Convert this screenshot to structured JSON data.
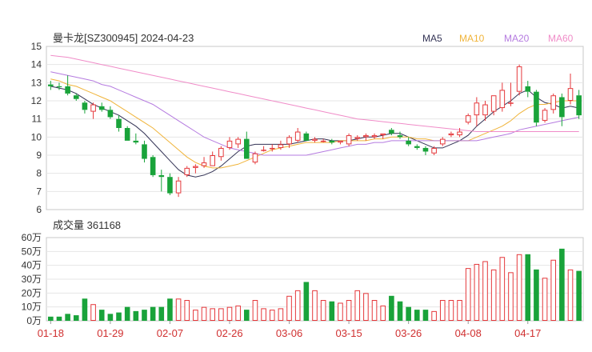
{
  "chart_data": [
    {
      "type": "candlestick",
      "title": "曼卡龙[SZ300945] 2024-04-23",
      "ylim": [
        6,
        15
      ],
      "y_ticks": [
        "6",
        "7",
        "8",
        "9",
        "10",
        "11",
        "12",
        "13",
        "14",
        "15"
      ],
      "legend": [
        {
          "name": "MA5",
          "color": "#333355"
        },
        {
          "name": "MA10",
          "color": "#f0b43a"
        },
        {
          "name": "MA20",
          "color": "#b57be0"
        },
        {
          "name": "MA60",
          "color": "#f08cc8"
        }
      ],
      "up_color": "#e5383b",
      "down_color": "#19a33a",
      "ohlc": [
        [
          12.9,
          13.1,
          12.6,
          12.8
        ],
        [
          12.8,
          13.0,
          12.6,
          12.75
        ],
        [
          12.8,
          13.4,
          12.3,
          12.4
        ],
        [
          12.3,
          12.4,
          12.0,
          12.1
        ],
        [
          11.9,
          12.0,
          11.3,
          11.5
        ],
        [
          11.4,
          11.9,
          11.0,
          11.8
        ],
        [
          11.7,
          11.9,
          11.4,
          11.5
        ],
        [
          11.5,
          11.7,
          11.0,
          11.1
        ],
        [
          11.0,
          11.2,
          10.3,
          10.5
        ],
        [
          10.5,
          10.6,
          9.8,
          9.8
        ],
        [
          9.8,
          10.2,
          9.6,
          9.7
        ],
        [
          9.6,
          9.8,
          8.6,
          8.8
        ],
        [
          8.9,
          9.0,
          7.8,
          7.9
        ],
        [
          7.9,
          8.2,
          7.0,
          7.8
        ],
        [
          7.8,
          8.0,
          6.8,
          6.9
        ],
        [
          6.9,
          7.8,
          6.7,
          7.6
        ],
        [
          7.9,
          8.4,
          7.8,
          8.3
        ],
        [
          8.3,
          8.5,
          8.0,
          8.4
        ],
        [
          8.4,
          8.9,
          8.3,
          8.6
        ],
        [
          8.4,
          9.2,
          8.4,
          9.0
        ],
        [
          8.9,
          9.5,
          8.7,
          9.4
        ],
        [
          9.4,
          10.0,
          9.3,
          9.8
        ],
        [
          9.6,
          10.0,
          9.4,
          9.9
        ],
        [
          9.9,
          10.3,
          8.8,
          8.8
        ],
        [
          8.6,
          9.2,
          8.5,
          9.1
        ],
        [
          9.3,
          9.5,
          9.2,
          9.3
        ],
        [
          9.4,
          9.6,
          9.2,
          9.4
        ],
        [
          9.4,
          9.8,
          9.3,
          9.6
        ],
        [
          9.6,
          10.1,
          9.4,
          10.0
        ],
        [
          9.8,
          10.5,
          9.7,
          10.3
        ],
        [
          10.2,
          10.3,
          9.8,
          9.8
        ],
        [
          9.8,
          10.0,
          9.7,
          9.9
        ],
        [
          9.8,
          9.9,
          9.7,
          9.8
        ],
        [
          9.8,
          9.9,
          9.6,
          9.7
        ],
        [
          9.7,
          9.8,
          9.6,
          9.8
        ],
        [
          9.6,
          10.2,
          9.5,
          10.1
        ],
        [
          9.9,
          10.1,
          9.8,
          10.0
        ],
        [
          10.0,
          10.2,
          9.8,
          10.1
        ],
        [
          10.0,
          10.2,
          9.9,
          10.1
        ],
        [
          10.1,
          10.2,
          9.9,
          10.2
        ],
        [
          10.4,
          10.5,
          10.1,
          10.2
        ],
        [
          10.1,
          10.3,
          9.9,
          10.0
        ],
        [
          9.8,
          10.0,
          9.5,
          9.6
        ],
        [
          9.5,
          9.6,
          9.3,
          9.4
        ],
        [
          9.4,
          9.5,
          9.0,
          9.2
        ],
        [
          9.1,
          9.5,
          9.0,
          9.4
        ],
        [
          9.6,
          10.0,
          9.5,
          9.9
        ],
        [
          10.1,
          10.3,
          10.0,
          10.2
        ],
        [
          10.1,
          10.5,
          10.0,
          10.3
        ],
        [
          10.8,
          11.3,
          10.7,
          11.2
        ],
        [
          11.2,
          12.2,
          10.6,
          11.9
        ],
        [
          11.2,
          12.0,
          10.9,
          11.8
        ],
        [
          11.4,
          12.3,
          11.2,
          12.3
        ],
        [
          11.6,
          13.0,
          11.4,
          12.6
        ],
        [
          11.9,
          13.0,
          11.7,
          11.9
        ],
        [
          12.5,
          14.0,
          12.3,
          13.9
        ],
        [
          12.8,
          13.1,
          12.2,
          12.5
        ],
        [
          12.5,
          12.6,
          10.6,
          10.8
        ],
        [
          10.9,
          11.6,
          10.8,
          11.5
        ],
        [
          11.5,
          12.4,
          11.3,
          12.3
        ],
        [
          12.2,
          12.4,
          10.6,
          11.1
        ],
        [
          12.0,
          13.5,
          11.8,
          12.7
        ],
        [
          12.3,
          12.6,
          11.0,
          11.2
        ]
      ],
      "ma": {
        "MA5": [
          12.8,
          12.7,
          12.6,
          12.4,
          12.1,
          11.8,
          11.6,
          11.4,
          11.2,
          10.9,
          10.6,
          10.2,
          9.7,
          9.2,
          8.7,
          8.2,
          7.9,
          7.8,
          7.9,
          8.1,
          8.4,
          8.8,
          9.2,
          9.5,
          9.6,
          9.6,
          9.6,
          9.6,
          9.6,
          9.7,
          9.8,
          9.9,
          9.9,
          9.8,
          9.8,
          9.8,
          9.9,
          10.0,
          10.0,
          10.1,
          10.2,
          10.2,
          10.0,
          9.8,
          9.6,
          9.4,
          9.4,
          9.6,
          9.8,
          10.1,
          10.6,
          11.0,
          11.4,
          11.7,
          12.0,
          12.4,
          12.6,
          12.2,
          11.9,
          11.8,
          11.6,
          11.7,
          11.6
        ],
        "MA10": [
          13.2,
          13.1,
          12.9,
          12.8,
          12.6,
          12.4,
          12.2,
          12.0,
          11.7,
          11.4,
          11.1,
          10.8,
          10.5,
          10.1,
          9.7,
          9.3,
          8.9,
          8.6,
          8.4,
          8.3,
          8.3,
          8.4,
          8.5,
          8.7,
          8.9,
          9.1,
          9.3,
          9.4,
          9.5,
          9.6,
          9.7,
          9.7,
          9.7,
          9.7,
          9.8,
          9.8,
          9.8,
          9.8,
          9.9,
          9.9,
          10.0,
          10.0,
          10.0,
          9.9,
          9.9,
          9.8,
          9.8,
          9.8,
          9.8,
          9.8,
          10.0,
          10.2,
          10.4,
          10.6,
          10.9,
          11.3,
          11.6,
          11.8,
          11.8,
          11.9,
          12.0,
          12.0,
          12.0
        ],
        "MA20": [
          13.6,
          13.5,
          13.4,
          13.3,
          13.2,
          13.1,
          12.9,
          12.8,
          12.6,
          12.4,
          12.2,
          12.0,
          11.8,
          11.5,
          11.2,
          10.9,
          10.6,
          10.3,
          10.0,
          9.8,
          9.6,
          9.4,
          9.3,
          9.2,
          9.1,
          9.0,
          9.0,
          9.0,
          9.0,
          9.0,
          9.0,
          9.1,
          9.2,
          9.3,
          9.4,
          9.5,
          9.6,
          9.6,
          9.7,
          9.7,
          9.8,
          9.8,
          9.8,
          9.8,
          9.8,
          9.8,
          9.8,
          9.8,
          9.8,
          9.8,
          9.8,
          9.9,
          10.0,
          10.1,
          10.2,
          10.4,
          10.5,
          10.6,
          10.7,
          10.8,
          10.9,
          11.0,
          11.1
        ],
        "MA60": [
          14.5,
          14.45,
          14.4,
          14.3,
          14.2,
          14.1,
          14.0,
          13.9,
          13.8,
          13.7,
          13.6,
          13.5,
          13.4,
          13.3,
          13.2,
          13.1,
          13.0,
          12.9,
          12.8,
          12.7,
          12.6,
          12.5,
          12.4,
          12.3,
          12.2,
          12.1,
          12.0,
          11.9,
          11.8,
          11.7,
          11.6,
          11.5,
          11.4,
          11.3,
          11.2,
          11.1,
          11.0,
          10.95,
          10.9,
          10.85,
          10.8,
          10.75,
          10.7,
          10.65,
          10.6,
          10.55,
          10.5,
          10.45,
          10.4,
          10.35,
          10.3,
          10.3,
          10.3,
          10.3,
          10.3,
          10.3,
          10.3,
          10.3,
          10.3,
          10.3,
          10.3,
          10.3,
          10.3
        ]
      }
    },
    {
      "type": "bar",
      "title": "成交量 361168",
      "ylim": [
        0,
        60
      ],
      "y_ticks": [
        "0万",
        "10万",
        "20万",
        "30万",
        "40万",
        "50万",
        "60万"
      ],
      "x_ticks": [
        {
          "label": "01-18",
          "index": 0
        },
        {
          "label": "01-29",
          "index": 7
        },
        {
          "label": "02-07",
          "index": 14
        },
        {
          "label": "02-26",
          "index": 21
        },
        {
          "label": "03-06",
          "index": 28
        },
        {
          "label": "03-15",
          "index": 35
        },
        {
          "label": "03-26",
          "index": 42
        },
        {
          "label": "04-08",
          "index": 49
        },
        {
          "label": "04-17",
          "index": 56
        }
      ],
      "values": [
        3,
        3,
        5,
        4,
        16,
        12,
        8,
        5,
        6,
        10,
        7,
        8,
        10,
        10,
        16,
        16,
        15,
        8,
        10,
        9,
        9,
        10,
        11,
        8,
        15,
        9,
        8,
        9,
        18,
        22,
        28,
        22,
        15,
        14,
        13,
        15,
        22,
        20,
        15,
        11,
        18,
        14,
        10,
        8,
        8,
        7,
        15,
        15,
        15,
        38,
        41,
        43,
        37,
        46,
        35,
        48,
        48,
        37,
        31,
        44,
        52,
        37,
        36
      ]
    }
  ]
}
